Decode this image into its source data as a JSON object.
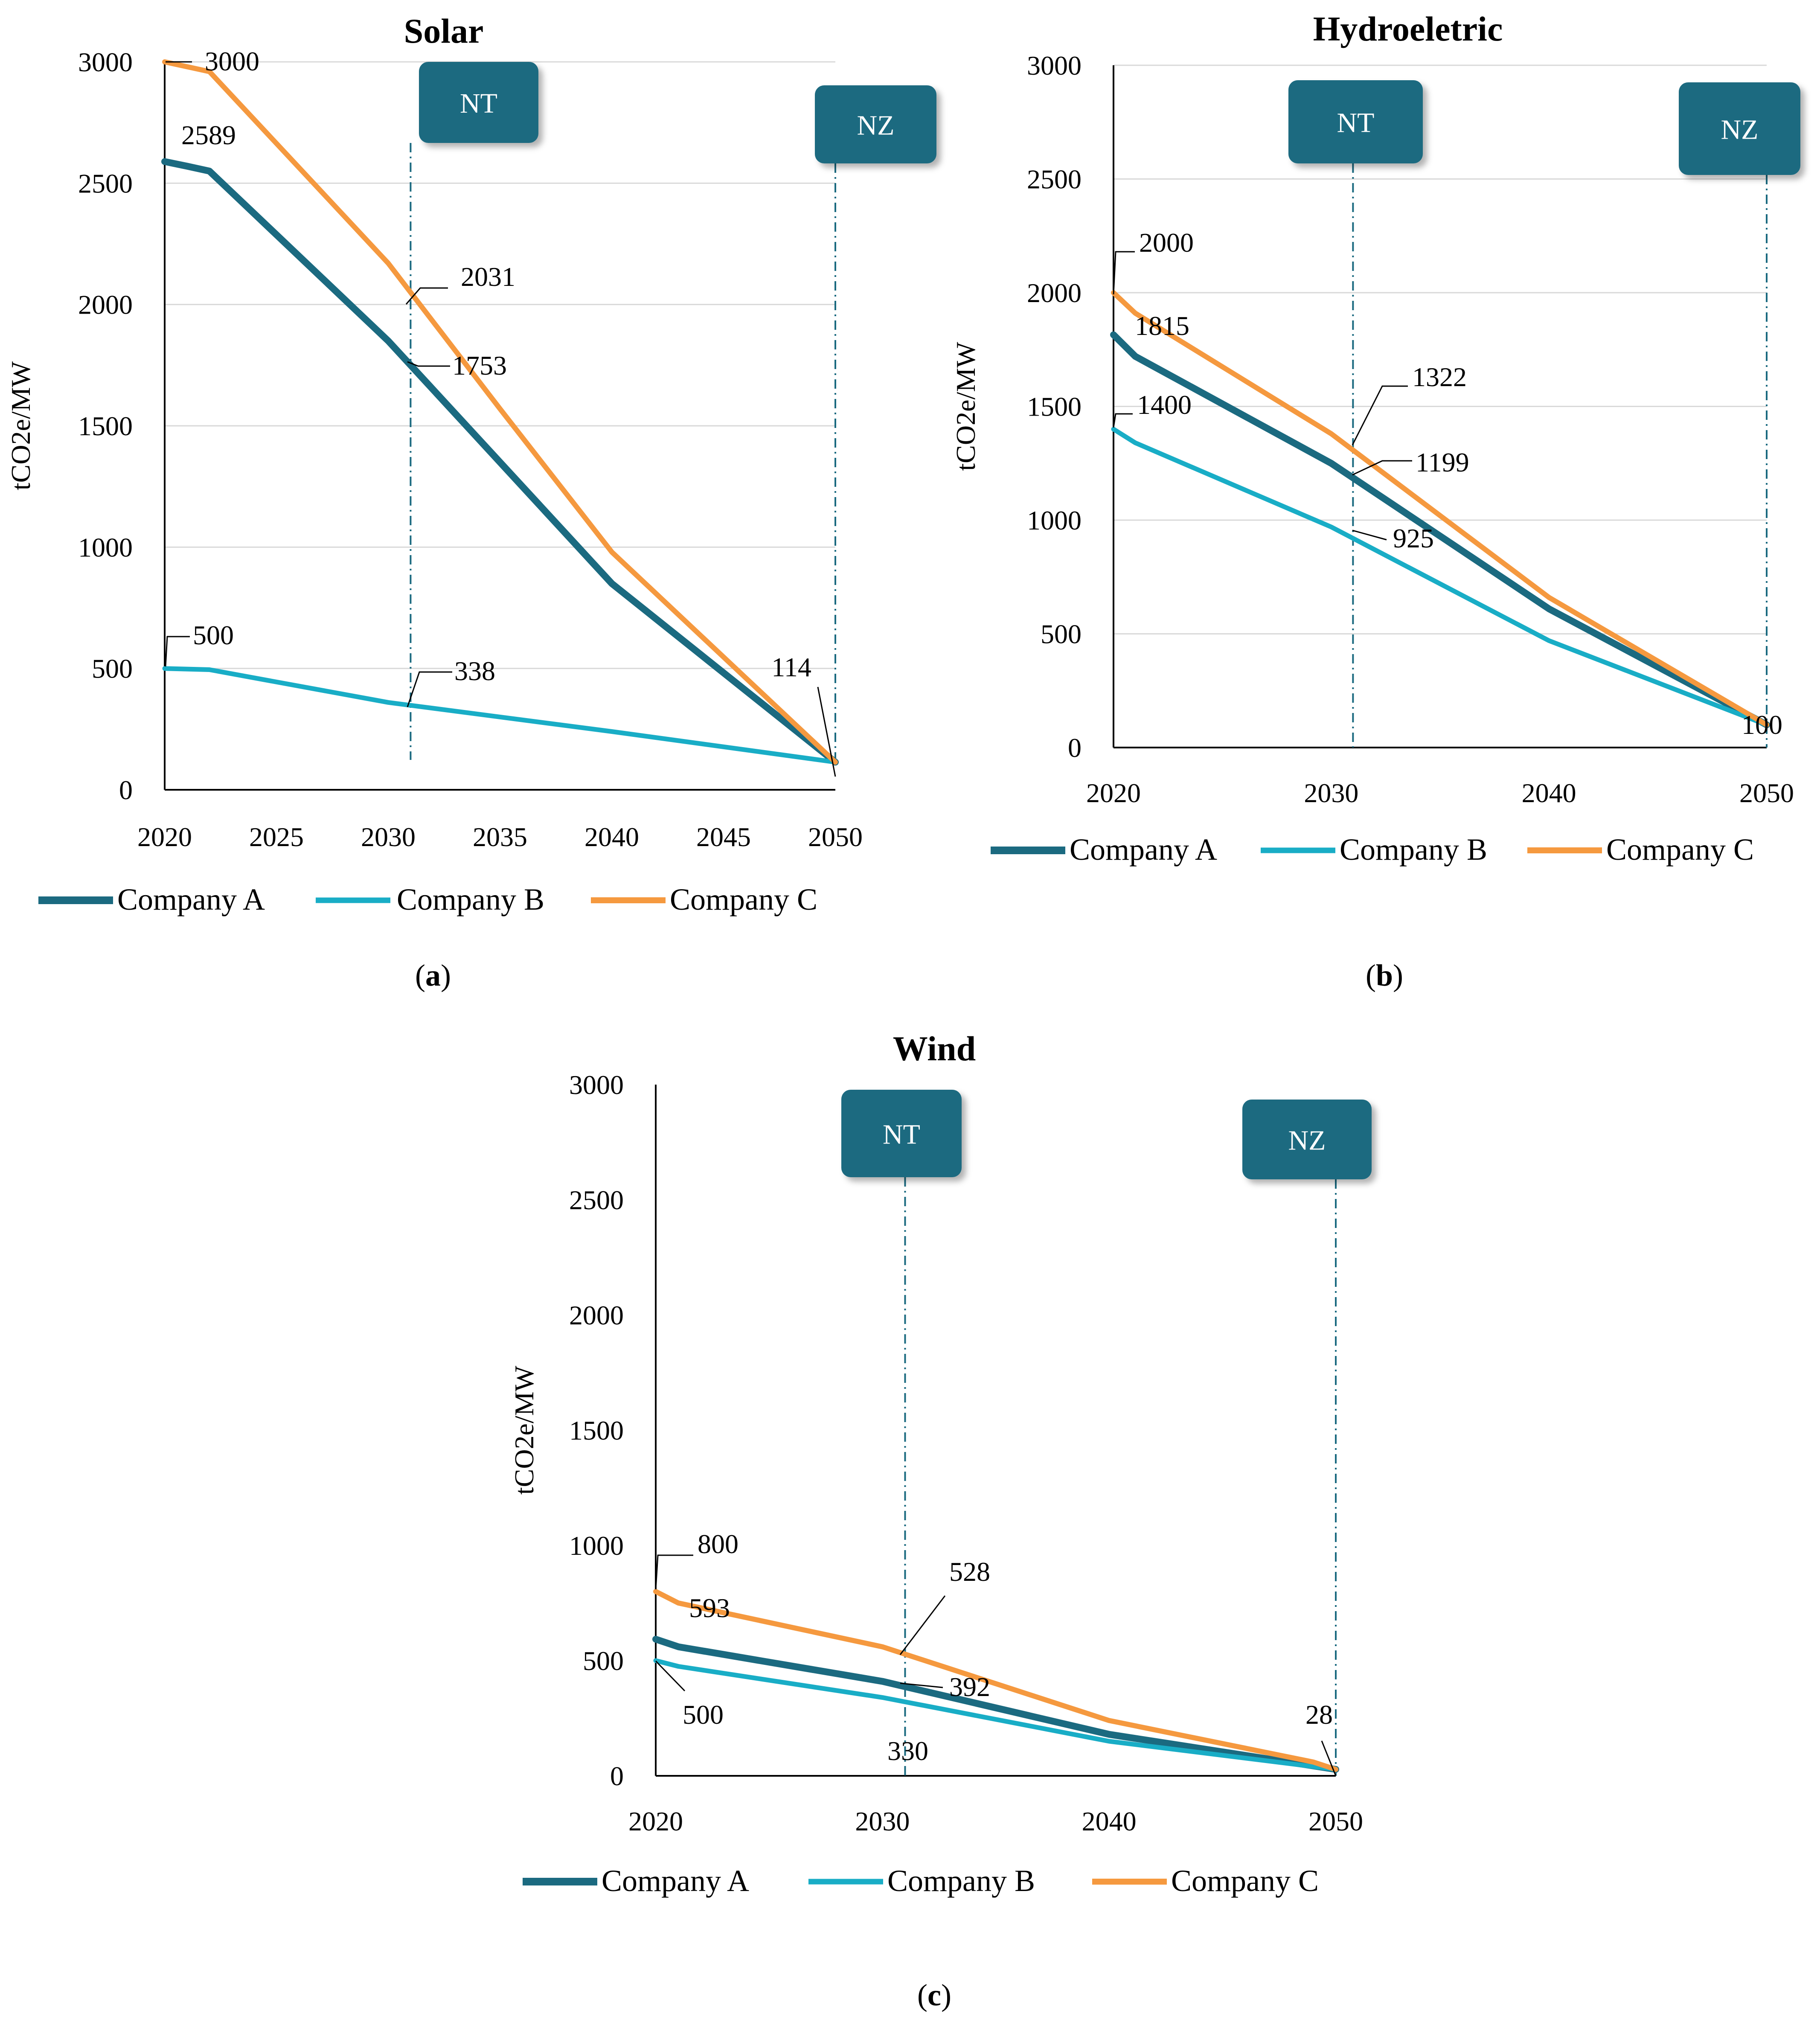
{
  "legend": [
    "Company A",
    "Company B",
    "Company C"
  ],
  "colors": {
    "Company A": "#1b6a80",
    "Company B": "#19adc6",
    "Company C": "#f5993f",
    "marker": "#1b6a80",
    "axis": "#000000",
    "grid": "#d9d9d9"
  },
  "chart_data": [
    {
      "id": "a",
      "caption": "(a)",
      "type": "line",
      "title": "Solar",
      "ylabel": "tCO2e/MW",
      "xlabel": "",
      "ylim": [
        0,
        3000
      ],
      "yticks": [
        0,
        500,
        1000,
        1500,
        2000,
        2500,
        3000
      ],
      "xlim": [
        2020,
        2050
      ],
      "xticks": [
        2020,
        2025,
        2030,
        2035,
        2040,
        2045,
        2050
      ],
      "grid": "horizontal",
      "legend_position": "bottom",
      "markers": [
        {
          "label": "NT",
          "x": 2031
        },
        {
          "label": "NZ",
          "x": 2050
        }
      ],
      "series": [
        {
          "name": "Company A",
          "x": [
            2020,
            2021,
            2022,
            2030,
            2035,
            2040,
            2050
          ],
          "values": [
            2589,
            2570,
            2550,
            1850,
            1350,
            850,
            114
          ]
        },
        {
          "name": "Company B",
          "x": [
            2020,
            2022,
            2030,
            2040,
            2050
          ],
          "values": [
            500,
            495,
            360,
            240,
            114
          ]
        },
        {
          "name": "Company C",
          "x": [
            2020,
            2022,
            2030,
            2035,
            2040,
            2050
          ],
          "values": [
            3000,
            2960,
            2170,
            1570,
            980,
            114
          ]
        }
      ],
      "annotations": [
        {
          "text": "3000",
          "x": 2020,
          "y": 3000
        },
        {
          "text": "2589",
          "x": 2020,
          "y": 2589
        },
        {
          "text": "2031",
          "x": 2031,
          "y": 2031
        },
        {
          "text": "1753",
          "x": 2031,
          "y": 1753
        },
        {
          "text": "500",
          "x": 2020,
          "y": 500
        },
        {
          "text": "338",
          "x": 2031,
          "y": 338
        },
        {
          "text": "114",
          "x": 2050,
          "y": 114
        }
      ]
    },
    {
      "id": "b",
      "caption": "(b)",
      "type": "line",
      "title": "Hydroeletric",
      "ylabel": "tCO2e/MW",
      "xlabel": "",
      "ylim": [
        0,
        3000
      ],
      "yticks": [
        0,
        500,
        1000,
        1500,
        2000,
        2500,
        3000
      ],
      "xlim": [
        2020,
        2050
      ],
      "xticks": [
        2020,
        2030,
        2040,
        2050
      ],
      "grid": "horizontal",
      "legend_position": "bottom",
      "markers": [
        {
          "label": "NT",
          "x": 2031
        },
        {
          "label": "NZ",
          "x": 2050
        }
      ],
      "series": [
        {
          "name": "Company A",
          "x": [
            2020,
            2021,
            2030,
            2040,
            2050
          ],
          "values": [
            1815,
            1720,
            1250,
            610,
            100
          ]
        },
        {
          "name": "Company B",
          "x": [
            2020,
            2021,
            2030,
            2040,
            2050
          ],
          "values": [
            1400,
            1340,
            970,
            470,
            100
          ]
        },
        {
          "name": "Company C",
          "x": [
            2020,
            2021,
            2030,
            2040,
            2050
          ],
          "values": [
            2000,
            1910,
            1380,
            660,
            100
          ]
        }
      ],
      "annotations": [
        {
          "text": "2000",
          "x": 2020,
          "y": 2000
        },
        {
          "text": "1815",
          "x": 2020,
          "y": 1815
        },
        {
          "text": "1400",
          "x": 2020,
          "y": 1400
        },
        {
          "text": "1322",
          "x": 2031,
          "y": 1322
        },
        {
          "text": "1199",
          "x": 2031,
          "y": 1199
        },
        {
          "text": "925",
          "x": 2031,
          "y": 925
        },
        {
          "text": "100",
          "x": 2050,
          "y": 100
        }
      ]
    },
    {
      "id": "c",
      "caption": "(c)",
      "type": "line",
      "title": "Wind",
      "ylabel": "tCO2e/MW",
      "xlabel": "",
      "ylim": [
        0,
        3000
      ],
      "yticks": [
        0,
        500,
        1000,
        1500,
        2000,
        2500,
        3000
      ],
      "xlim": [
        2020,
        2050
      ],
      "xticks": [
        2020,
        2030,
        2040,
        2050
      ],
      "grid": "none",
      "legend_position": "bottom",
      "markers": [
        {
          "label": "NT",
          "x": 2031
        },
        {
          "label": "NZ",
          "x": 2050
        }
      ],
      "series": [
        {
          "name": "Company A",
          "x": [
            2020,
            2021,
            2030,
            2040,
            2050
          ],
          "values": [
            593,
            560,
            410,
            180,
            28
          ]
        },
        {
          "name": "Company B",
          "x": [
            2020,
            2021,
            2030,
            2040,
            2050
          ],
          "values": [
            500,
            475,
            340,
            150,
            28
          ]
        },
        {
          "name": "Company C",
          "x": [
            2020,
            2021,
            2030,
            2040,
            2049,
            2050
          ],
          "values": [
            800,
            750,
            560,
            240,
            60,
            28
          ]
        }
      ],
      "annotations": [
        {
          "text": "800",
          "x": 2020,
          "y": 800
        },
        {
          "text": "593",
          "x": 2020,
          "y": 593
        },
        {
          "text": "500",
          "x": 2020,
          "y": 500
        },
        {
          "text": "528",
          "x": 2031,
          "y": 528
        },
        {
          "text": "392",
          "x": 2031,
          "y": 392
        },
        {
          "text": "330",
          "x": 2031,
          "y": 330
        },
        {
          "text": "28",
          "x": 2050,
          "y": 28
        }
      ]
    }
  ]
}
